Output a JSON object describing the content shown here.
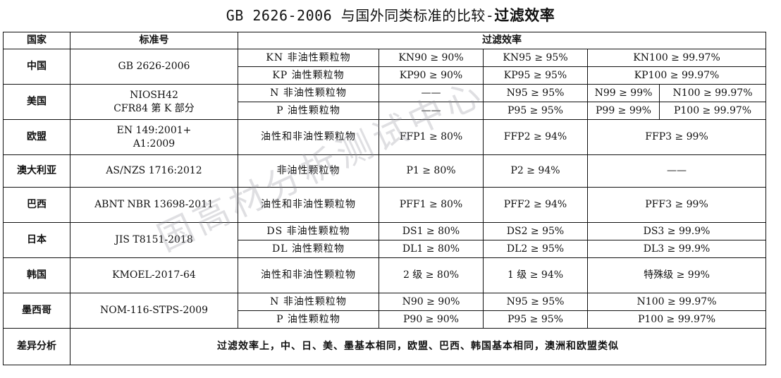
{
  "title": {
    "prefix": "GB 2626-2006 与国外同类标准的比较-",
    "bold": "过滤效率"
  },
  "header": {
    "country": "国家",
    "standard": "标准号",
    "efficiency": "过滤效率"
  },
  "china": {
    "country": "中国",
    "standard": "GB 2626-2006",
    "r1": {
      "type": "KN 非油性颗粒物",
      "a": "KN90 ≥ 90%",
      "b": "KN95 ≥ 95%",
      "c": "KN100 ≥ 99.97%"
    },
    "r2": {
      "type": "KP 油性颗粒物",
      "a": "KP90 ≥ 90%",
      "b": "KP95 ≥ 95%",
      "c": "KP100 ≥ 99.97%"
    }
  },
  "usa": {
    "country": "美国",
    "standard1": "NIOSH42",
    "standard2": "CFR84 第 K 部分",
    "r1": {
      "type": "N 非油性颗粒物",
      "a": "——",
      "b": "N95 ≥ 95%",
      "c": "N99 ≥ 99%",
      "d": "N100 ≥ 99.97%"
    },
    "r2": {
      "type": "P 油性颗粒物",
      "a": "——",
      "b": "P95 ≥ 95%",
      "c": "P99 ≥ 99%",
      "d": "P100 ≥ 99.97%"
    }
  },
  "eu": {
    "country": "欧盟",
    "standard1": "EN 149:2001+",
    "standard2": "A1:2009",
    "type": "油性和非油性颗粒物",
    "a": "FFP1 ≥ 80%",
    "b": "FFP2 ≥ 94%",
    "c": "FFP3 ≥ 99%"
  },
  "aus": {
    "country": "澳大利亚",
    "standard": "AS/NZS 1716:2012",
    "type": "非油性颗粒物",
    "a": "P1 ≥ 80%",
    "b": "P2 ≥ 94%",
    "c": "——"
  },
  "brazil": {
    "country": "巴西",
    "standard": "ABNT NBR 13698-2011",
    "type": "油性和非油性颗粒物",
    "a": "PFF1 ≥ 80%",
    "b": "PFF2 ≥ 94%",
    "c": "PFF3 ≥ 99%"
  },
  "japan": {
    "country": "日本",
    "standard": "JIS T8151-2018",
    "r1": {
      "type": "DS 非油性颗粒物",
      "a": "DS1 ≥ 80%",
      "b": "DS2 ≥ 95%",
      "c": "DS3 ≥ 99.9%"
    },
    "r2": {
      "type": "DL 油性颗粒物",
      "a": "DL1 ≥ 80%",
      "b": "DL2 ≥ 95%",
      "c": "DL3 ≥ 99.9%"
    }
  },
  "korea": {
    "country": "韩国",
    "standard": "KMOEL-2017-64",
    "type": "油性和非油性颗粒物",
    "a": "2 级 ≥ 80%",
    "b": "1 级 ≥ 94%",
    "c": "特殊级 ≥ 99%"
  },
  "mexico": {
    "country": "墨西哥",
    "standard": "NOM-116-STPS-2009",
    "r1": {
      "type": "N 非油性颗粒物",
      "a": "N90 ≥ 90%",
      "b": "N95 ≥ 95%",
      "c": "N100 ≥ 99.97%"
    },
    "r2": {
      "type": "P 油性颗粒物",
      "a": "P90 ≥ 90%",
      "b": "P95 ≥ 95%",
      "c": "P100 ≥ 99.97%"
    }
  },
  "summary": {
    "label": "差异分析",
    "text": "过滤效率上，中、日、美、墨基本相同，欧盟、巴西、韩国基本相同，澳洲和欧盟类似"
  },
  "watermark": "国高材分析测试中心"
}
